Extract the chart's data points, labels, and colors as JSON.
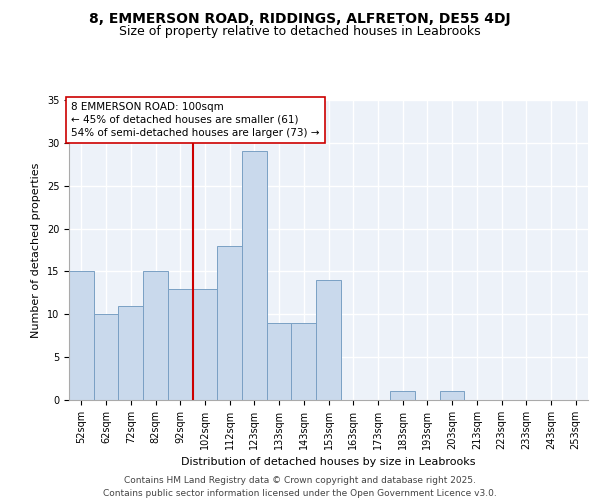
{
  "title": "8, EMMERSON ROAD, RIDDINGS, ALFRETON, DE55 4DJ",
  "subtitle": "Size of property relative to detached houses in Leabrooks",
  "xlabel": "Distribution of detached houses by size in Leabrooks",
  "ylabel": "Number of detached properties",
  "categories": [
    "52sqm",
    "62sqm",
    "72sqm",
    "82sqm",
    "92sqm",
    "102sqm",
    "112sqm",
    "123sqm",
    "133sqm",
    "143sqm",
    "153sqm",
    "163sqm",
    "173sqm",
    "183sqm",
    "193sqm",
    "203sqm",
    "213sqm",
    "223sqm",
    "233sqm",
    "243sqm",
    "253sqm"
  ],
  "values": [
    15,
    10,
    11,
    15,
    13,
    13,
    18,
    29,
    9,
    9,
    14,
    0,
    0,
    1,
    0,
    1,
    0,
    0,
    0,
    0,
    0
  ],
  "bar_color": "#c9d9ec",
  "bar_edge_color": "#7aa0c4",
  "reference_line_color": "#cc0000",
  "annotation_text": "8 EMMERSON ROAD: 100sqm\n← 45% of detached houses are smaller (61)\n54% of semi-detached houses are larger (73) →",
  "annotation_box_color": "white",
  "annotation_box_edge_color": "#cc0000",
  "ylim": [
    0,
    35
  ],
  "yticks": [
    0,
    5,
    10,
    15,
    20,
    25,
    30,
    35
  ],
  "background_color": "#edf2f9",
  "grid_color": "white",
  "footer_text": "Contains HM Land Registry data © Crown copyright and database right 2025.\nContains public sector information licensed under the Open Government Licence v3.0.",
  "title_fontsize": 10,
  "subtitle_fontsize": 9,
  "axis_label_fontsize": 8,
  "tick_fontsize": 7,
  "annotation_fontsize": 7.5,
  "footer_fontsize": 6.5
}
